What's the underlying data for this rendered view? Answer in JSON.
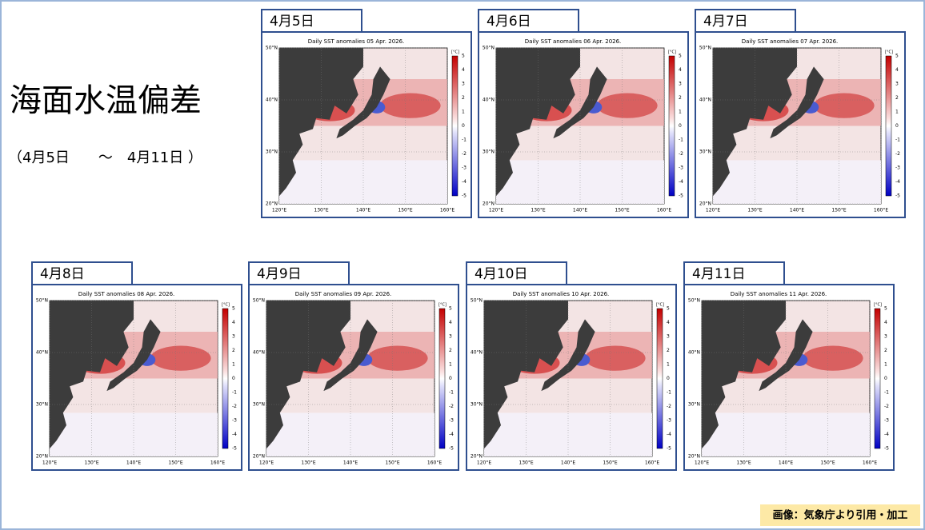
{
  "title": "海面水温偏差",
  "subtitle": "（4月5日　　～　4月11日 ）",
  "panels": [
    {
      "tab": "4月5日",
      "map_title": "Daily SST anomalies 05 Apr. 2026."
    },
    {
      "tab": "4月6日",
      "map_title": "Daily SST anomalies 06 Apr. 2026."
    },
    {
      "tab": "4月7日",
      "map_title": "Daily SST anomalies 07 Apr. 2026."
    },
    {
      "tab": "4月8日",
      "map_title": "Daily SST anomalies 08 Apr. 2026."
    },
    {
      "tab": "4月9日",
      "map_title": "Daily SST anomalies 09 Apr. 2026."
    },
    {
      "tab": "4月10日",
      "map_title": "Daily SST anomalies 10 Apr. 2026."
    },
    {
      "tab": "4月11日",
      "map_title": "Daily SST anomalies 11 Apr. 2026."
    }
  ],
  "map_axes": {
    "lat_labels": [
      "50°N",
      "40°N",
      "30°N",
      "20°N"
    ],
    "lon_labels": [
      "120°E",
      "130°E",
      "140°E",
      "150°E",
      "160°E"
    ],
    "colorbar_unit": "[°C]",
    "colorbar_labels": [
      5,
      4,
      3,
      2,
      1,
      0,
      -1,
      -2,
      -3,
      -4,
      -5
    ]
  },
  "credit": "画像：気象庁より引用・加工"
}
